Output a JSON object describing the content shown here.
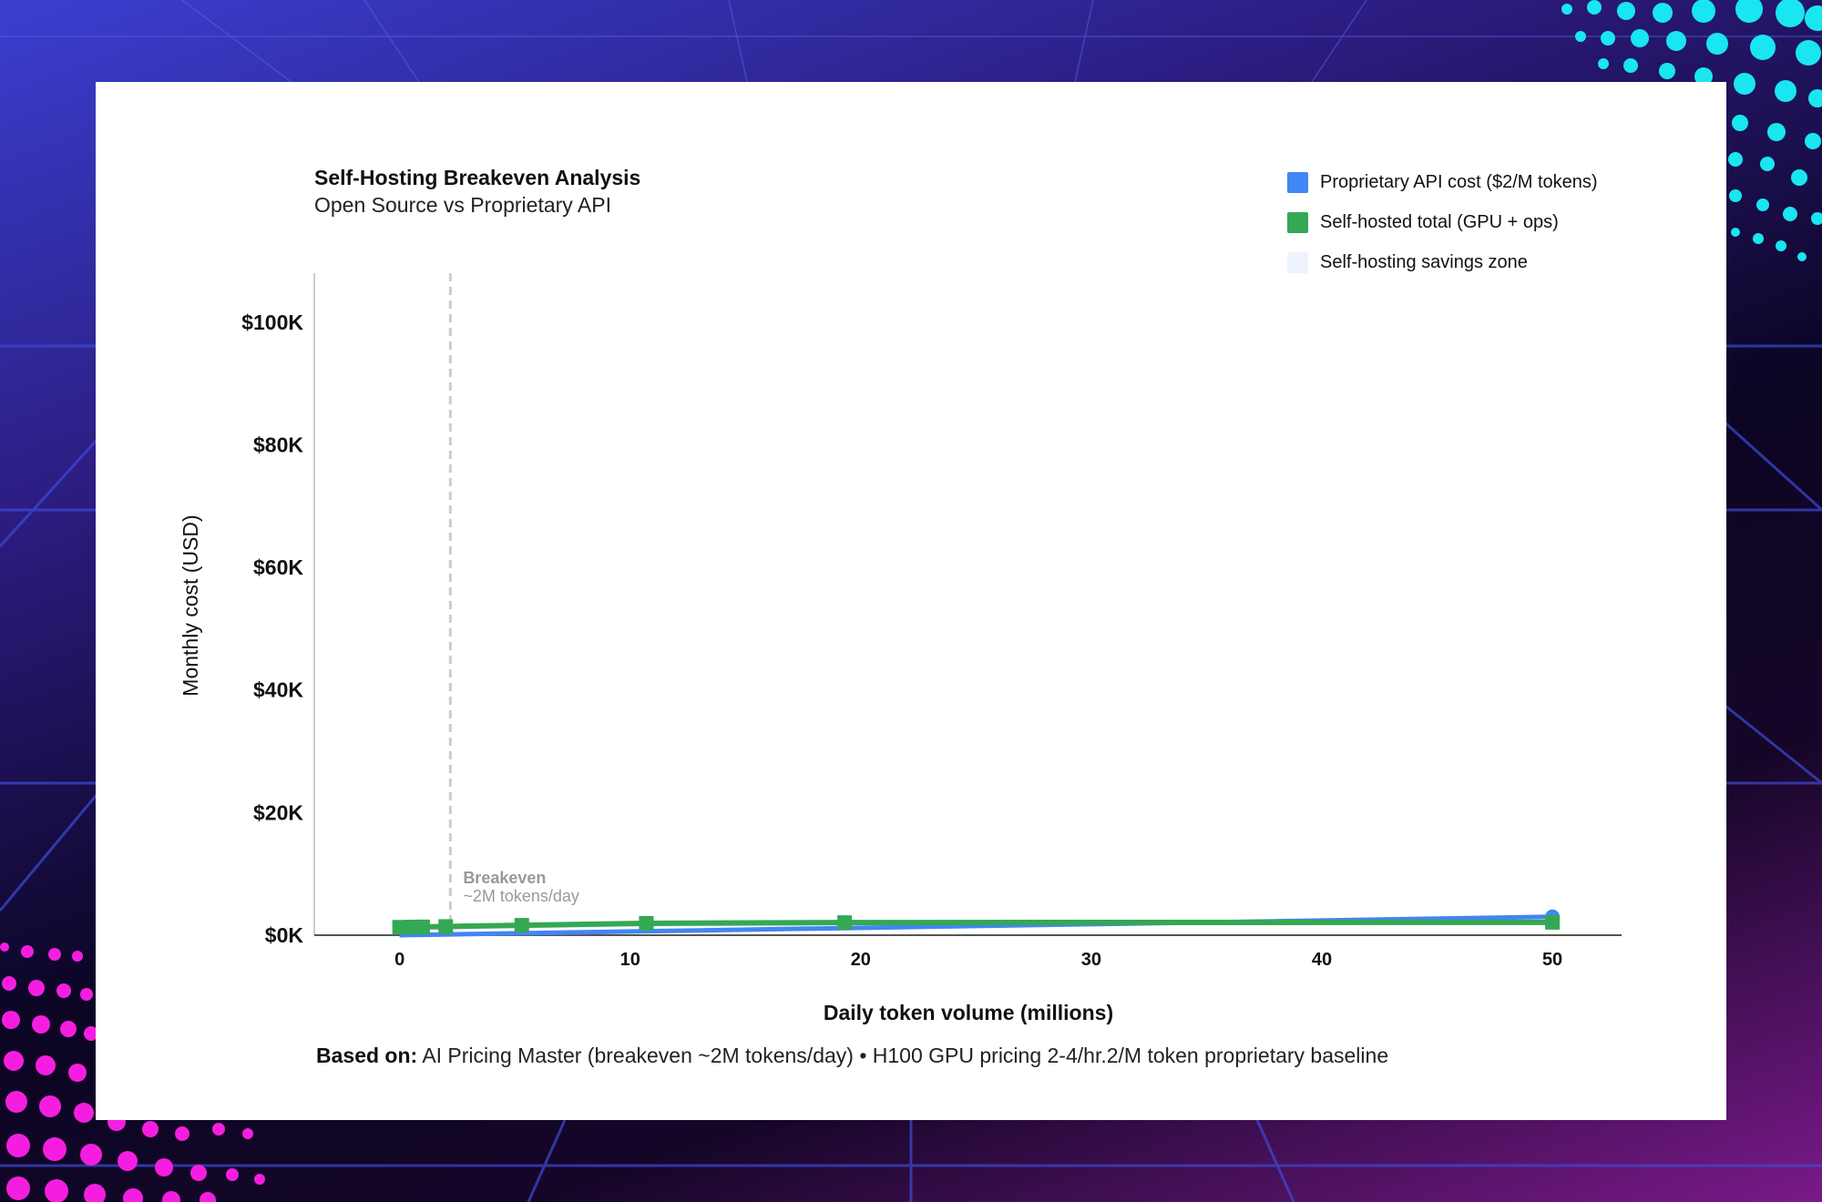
{
  "chart_data": {
    "type": "line",
    "title": "Self-Hosting Breakeven Analysis",
    "subtitle": "Open Source vs Proprietary API",
    "xlabel": "Daily token volume (millions)",
    "ylabel": "Monthly cost (USD)",
    "xlim": [
      -3.7,
      53
    ],
    "ylim": [
      0,
      108000
    ],
    "x_ticks": [
      0,
      10,
      20,
      30,
      40,
      50
    ],
    "y_ticks": [
      {
        "value": 0,
        "label": "$0K"
      },
      {
        "value": 20000,
        "label": "$20K"
      },
      {
        "value": 40000,
        "label": "$40K"
      },
      {
        "value": 60000,
        "label": "$60K"
      },
      {
        "value": 80000,
        "label": "$80K"
      },
      {
        "value": 100000,
        "label": "$100K"
      }
    ],
    "grid": false,
    "legend_position": "top-right",
    "series": [
      {
        "name": "Proprietary API cost ($2/M tokens)",
        "color": "#4285f4",
        "x": [
          0,
          0.5,
          1,
          2,
          5.3,
          10.7,
          19.3,
          50
        ],
        "y": [
          0,
          30,
          60,
          120,
          318,
          642,
          1158,
          3000
        ]
      },
      {
        "name": "Self-hosted total (GPU + ops)",
        "color": "#34a853",
        "marker": "square",
        "x": [
          0,
          0.5,
          1,
          2,
          5.3,
          10.7,
          19.3,
          50
        ],
        "y": [
          1300,
          1330,
          1360,
          1420,
          1620,
          1940,
          2060,
          2100
        ]
      },
      {
        "name": "Self-hosting savings zone",
        "color": "#eef3fe"
      }
    ],
    "annotations": [
      {
        "x": 2.2,
        "label_bold": "Breakeven",
        "label": "~2M tokens/day",
        "style": "dashed-vertical"
      }
    ]
  },
  "footer": {
    "bold": "Based on:",
    "text": "AI Pricing Master (breakeven ~2M tokens/day) • H100 GPU pricing 2-4/hr.2/M token proprietary baseline"
  }
}
